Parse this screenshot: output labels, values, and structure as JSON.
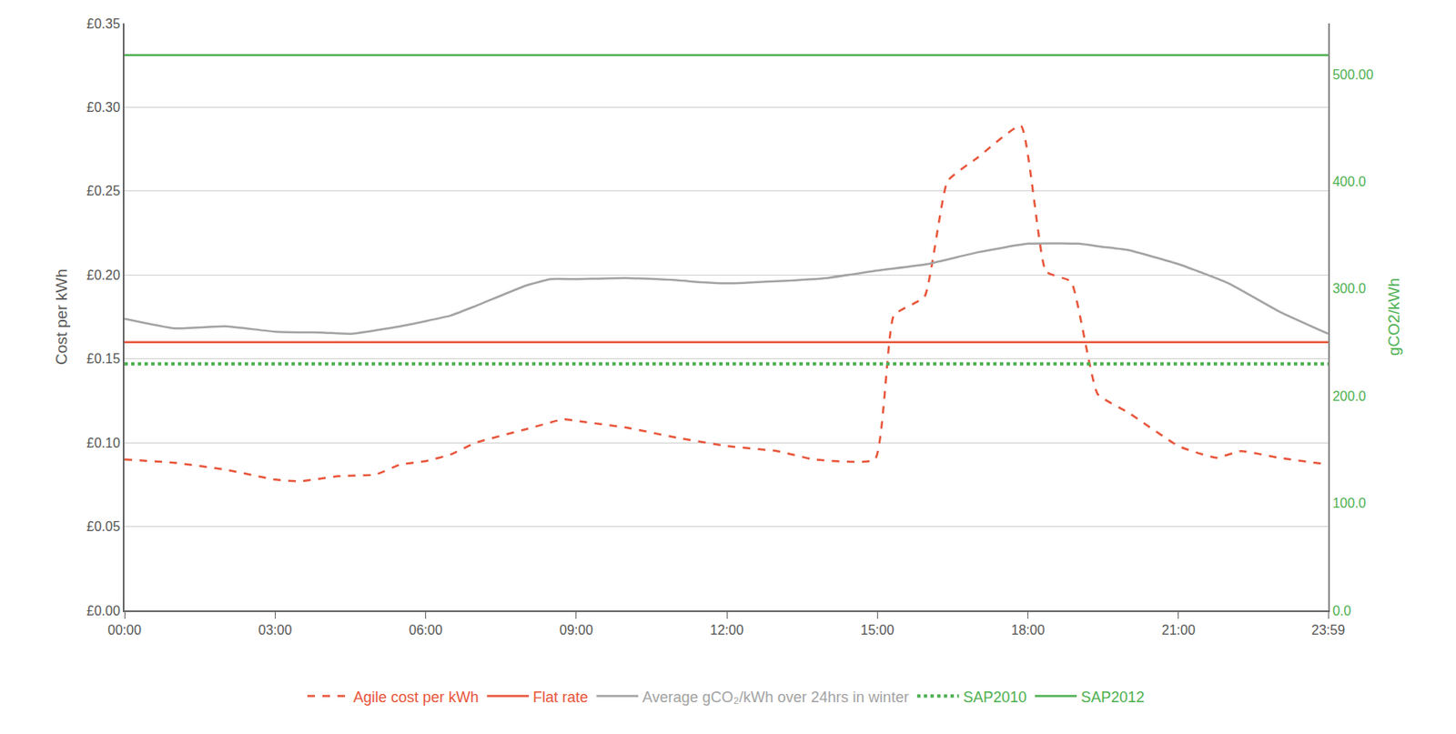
{
  "chart_data": {
    "type": "line",
    "y_label": "Cost per kWh",
    "y2_label": "gCO2/kWh",
    "grid": true,
    "legend": "bottom",
    "xlim": [
      0,
      23.9833
    ],
    "xticks": [
      {
        "value": 0,
        "label": "00:00"
      },
      {
        "value": 3,
        "label": "03:00"
      },
      {
        "value": 6,
        "label": "06:00"
      },
      {
        "value": 9,
        "label": "09:00"
      },
      {
        "value": 12,
        "label": "12:00"
      },
      {
        "value": 15,
        "label": "15:00"
      },
      {
        "value": 18,
        "label": "18:00"
      },
      {
        "value": 21,
        "label": "21:00"
      },
      {
        "value": 23.9833,
        "label": "23:59"
      }
    ],
    "ylim": [
      0,
      0.35
    ],
    "yticks": [
      {
        "value": 0,
        "label": "£0.00"
      },
      {
        "value": 0.05,
        "label": "£0.05"
      },
      {
        "value": 0.1,
        "label": "£0.10"
      },
      {
        "value": 0.15,
        "label": "£0.15"
      },
      {
        "value": 0.2,
        "label": "£0.20"
      },
      {
        "value": 0.25,
        "label": "£0.25"
      },
      {
        "value": 0.3,
        "label": "£0.30"
      },
      {
        "value": 0.35,
        "label": "£0.35"
      }
    ],
    "y2lim": [
      0,
      547.5
    ],
    "y2ticks": [
      {
        "value": 0,
        "label": "0.0"
      },
      {
        "value": 100,
        "label": "100.0"
      },
      {
        "value": 200,
        "label": "200.0"
      },
      {
        "value": 300,
        "label": "300.0"
      },
      {
        "value": 400,
        "label": "400.0"
      },
      {
        "value": 500,
        "label": "500.00"
      }
    ],
    "series": [
      {
        "name": "Agile cost per kWh",
        "color": "#e8553a",
        "line_style": "dash",
        "x": [
          0,
          1,
          2,
          3,
          3.5,
          4.25,
          5,
          5.5,
          6,
          6.5,
          7,
          8,
          8.75,
          9,
          10,
          11,
          12,
          13,
          13.75,
          14.95,
          15.33,
          15.94,
          16.4,
          17,
          17.86,
          18.36,
          18.86,
          19.39,
          20,
          21,
          21.75,
          22.25,
          23,
          23.9833
        ],
        "values": [
          0.09,
          0.088,
          0.084,
          0.078,
          0.077,
          0.08,
          0.081,
          0.087,
          0.089,
          0.093,
          0.1,
          0.108,
          0.114,
          0.113,
          0.109,
          0.103,
          0.098,
          0.095,
          0.09,
          0.09,
          0.176,
          0.187,
          0.256,
          0.27,
          0.289,
          0.202,
          0.196,
          0.129,
          0.118,
          0.098,
          0.091,
          0.095,
          0.091,
          0.087
        ]
      },
      {
        "name": "Flat rate",
        "color": "#e8553a",
        "line_style": "solid",
        "x": [
          0,
          23.9833
        ],
        "values": [
          0.16,
          0.16
        ]
      },
      {
        "name": "Average gCO₂/kWh over 24hrs in winter",
        "color": "#a3a3a3",
        "line_style": "solid",
        "axis": "y2",
        "x": [
          0,
          1,
          2,
          3,
          4,
          4.5,
          5.5,
          6.5,
          7,
          8,
          8.5,
          9,
          10,
          11,
          11.5,
          12,
          13,
          14,
          15,
          16,
          17,
          18,
          19,
          19.5,
          20,
          21,
          22,
          23,
          23.9833
        ],
        "values": [
          272,
          263,
          265,
          260,
          259,
          258,
          265,
          275,
          284,
          303,
          309,
          309,
          310,
          308,
          306,
          305,
          307,
          310,
          317,
          323,
          334,
          342,
          342,
          339,
          336,
          323,
          305,
          279,
          258
        ]
      },
      {
        "name": "SAP2010",
        "color": "#4cb050",
        "line_style": "dot",
        "axis": "y2",
        "x": [
          0,
          23.9833
        ],
        "values": [
          230,
          230
        ]
      },
      {
        "name": "SAP2012",
        "color": "#4cb050",
        "line_style": "solid",
        "axis": "y2",
        "x": [
          0,
          23.9833
        ],
        "values": [
          518,
          518
        ]
      }
    ]
  }
}
